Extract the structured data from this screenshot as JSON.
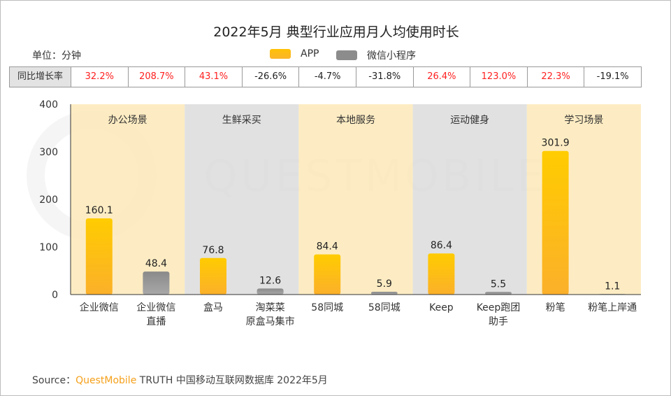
{
  "title": "2022年5月 典型行业应用月人均使用时长",
  "unit": "单位：分钟",
  "legend": [
    {
      "label": "APP",
      "color": "#ffc107"
    },
    {
      "label": "微信小程序",
      "color": "#8c8c8c"
    }
  ],
  "yoy": {
    "header": "同比增长率",
    "values": [
      "32.2%",
      "208.7%",
      "43.1%",
      "-26.6%",
      "-4.7%",
      "-31.8%",
      "26.4%",
      "123.0%",
      "22.3%",
      "-19.1%"
    ],
    "positive_color": "#ff2020",
    "negative_color": "#222222"
  },
  "watermark": "QUESTMOBILE",
  "chart_data": {
    "type": "bar",
    "ylim": [
      0,
      400
    ],
    "yticks": [
      "0",
      "100",
      "200",
      "300",
      "400"
    ],
    "groups": [
      {
        "name": "办公场景",
        "band_color": "#fde9b8",
        "bars": [
          {
            "label": "企业微信",
            "value": 160.1,
            "value_label": "160.1",
            "kind": "APP"
          },
          {
            "label": "企业微信\n直播",
            "value": 48.4,
            "value_label": "48.4",
            "kind": "微信小程序"
          }
        ]
      },
      {
        "name": "生鲜采买",
        "band_color": "#dcdcdc",
        "bars": [
          {
            "label": "盒马",
            "value": 76.8,
            "value_label": "76.8",
            "kind": "APP"
          },
          {
            "label": "淘菜菜\n原盒马集市",
            "value": 12.6,
            "value_label": "12.6",
            "kind": "微信小程序"
          }
        ]
      },
      {
        "name": "本地服务",
        "band_color": "#fde9b8",
        "bars": [
          {
            "label": "58同城",
            "value": 84.4,
            "value_label": "84.4",
            "kind": "APP"
          },
          {
            "label": "58同城",
            "value": 5.9,
            "value_label": "5.9",
            "kind": "微信小程序"
          }
        ]
      },
      {
        "name": "运动健身",
        "band_color": "#dcdcdc",
        "bars": [
          {
            "label": "Keep",
            "value": 86.4,
            "value_label": "86.4",
            "kind": "APP"
          },
          {
            "label": "Keep跑团\n助手",
            "value": 5.5,
            "value_label": "5.5",
            "kind": "微信小程序"
          }
        ]
      },
      {
        "name": "学习场景",
        "band_color": "#fde9b8",
        "bars": [
          {
            "label": "粉笔",
            "value": 301.9,
            "value_label": "301.9",
            "kind": "APP"
          },
          {
            "label": "粉笔上岸通",
            "value": 1.1,
            "value_label": "1.1",
            "kind": "微信小程序"
          }
        ]
      }
    ]
  },
  "source": {
    "prefix": "Source：",
    "brand": "QuestMobile",
    "rest": " TRUTH 中国移动互联网数据库 2022年5月"
  }
}
